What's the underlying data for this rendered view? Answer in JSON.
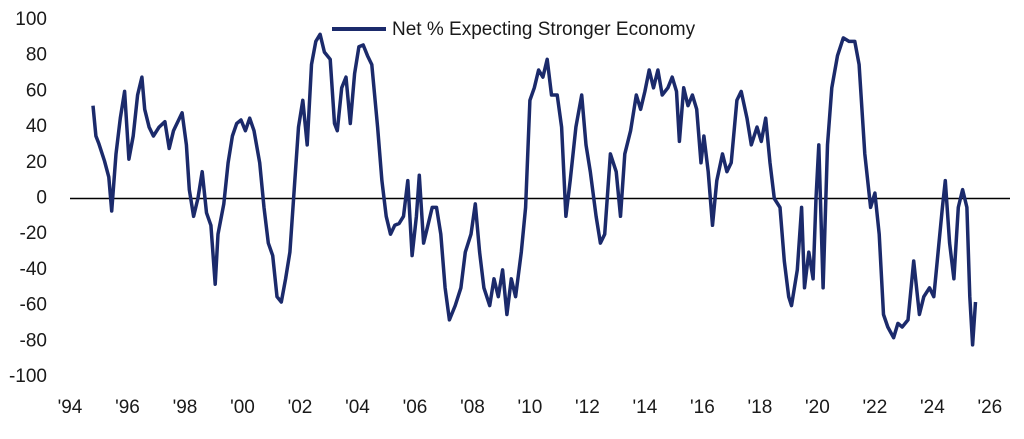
{
  "chart_data": {
    "type": "line",
    "legend": "top center",
    "zero_line": true,
    "xlim": [
      1994,
      2026.7
    ],
    "ylim": [
      -100,
      100
    ],
    "yticks": [
      -100,
      -80,
      -60,
      -40,
      -20,
      0,
      20,
      40,
      60,
      80,
      100
    ],
    "xticks": [
      {
        "value": 1994,
        "label": "'94"
      },
      {
        "value": 1996,
        "label": "'96"
      },
      {
        "value": 1998,
        "label": "'98"
      },
      {
        "value": 2000,
        "label": "'00"
      },
      {
        "value": 2002,
        "label": "'02"
      },
      {
        "value": 2004,
        "label": "'04"
      },
      {
        "value": 2006,
        "label": "'06"
      },
      {
        "value": 2008,
        "label": "'08"
      },
      {
        "value": 2010,
        "label": "'10"
      },
      {
        "value": 2012,
        "label": "'12"
      },
      {
        "value": 2014,
        "label": "'14"
      },
      {
        "value": 2016,
        "label": "'16"
      },
      {
        "value": 2018,
        "label": "'18"
      },
      {
        "value": 2020,
        "label": "'20"
      },
      {
        "value": 2022,
        "label": "'22"
      },
      {
        "value": 2024,
        "label": "'24"
      },
      {
        "value": 2026,
        "label": "'26"
      }
    ],
    "x": [
      1994.8,
      1994.9,
      1995.0,
      1995.2,
      1995.35,
      1995.45,
      1995.6,
      1995.75,
      1995.9,
      1996.05,
      1996.2,
      1996.35,
      1996.5,
      1996.6,
      1996.75,
      1996.9,
      1997.1,
      1997.3,
      1997.45,
      1997.6,
      1997.75,
      1997.9,
      1998.05,
      1998.15,
      1998.3,
      1998.45,
      1998.6,
      1998.75,
      1998.9,
      1999.05,
      1999.15,
      1999.35,
      1999.5,
      1999.65,
      1999.8,
      1999.95,
      2000.1,
      2000.25,
      2000.4,
      2000.6,
      2000.75,
      2000.9,
      2001.05,
      2001.2,
      2001.35,
      2001.5,
      2001.65,
      2001.8,
      2001.95,
      2002.1,
      2002.25,
      2002.4,
      2002.55,
      2002.7,
      2002.85,
      2003.05,
      2003.2,
      2003.3,
      2003.45,
      2003.6,
      2003.75,
      2003.9,
      2004.05,
      2004.2,
      2004.35,
      2004.5,
      2004.7,
      2004.85,
      2005.0,
      2005.15,
      2005.3,
      2005.45,
      2005.6,
      2005.75,
      2005.9,
      2006.05,
      2006.15,
      2006.3,
      2006.45,
      2006.6,
      2006.75,
      2006.9,
      2007.05,
      2007.2,
      2007.4,
      2007.6,
      2007.75,
      2007.95,
      2008.1,
      2008.25,
      2008.4,
      2008.6,
      2008.75,
      2008.9,
      2009.05,
      2009.2,
      2009.35,
      2009.5,
      2009.7,
      2009.85,
      2010.0,
      2010.15,
      2010.3,
      2010.45,
      2010.6,
      2010.75,
      2010.95,
      2011.1,
      2011.25,
      2011.4,
      2011.6,
      2011.8,
      2011.95,
      2012.1,
      2012.3,
      2012.45,
      2012.6,
      2012.8,
      2013.0,
      2013.15,
      2013.3,
      2013.5,
      2013.7,
      2013.85,
      2014.0,
      2014.15,
      2014.3,
      2014.45,
      2014.6,
      2014.8,
      2014.95,
      2015.1,
      2015.2,
      2015.35,
      2015.5,
      2015.65,
      2015.8,
      2015.95,
      2016.05,
      2016.2,
      2016.35,
      2016.5,
      2016.7,
      2016.85,
      2017.0,
      2017.2,
      2017.35,
      2017.55,
      2017.7,
      2017.9,
      2018.05,
      2018.2,
      2018.35,
      2018.5,
      2018.7,
      2018.85,
      2019.0,
      2019.1,
      2019.3,
      2019.45,
      2019.55,
      2019.7,
      2019.85,
      2019.95,
      2020.05,
      2020.2,
      2020.35,
      2020.5,
      2020.7,
      2020.9,
      2021.1,
      2021.3,
      2021.45,
      2021.65,
      2021.85,
      2022.0,
      2022.15,
      2022.3,
      2022.45,
      2022.65,
      2022.8,
      2022.95,
      2023.15,
      2023.35,
      2023.55,
      2023.7,
      2023.9,
      2024.05,
      2024.2,
      2024.35,
      2024.45,
      2024.6,
      2024.75,
      2024.9,
      2025.05,
      2025.2,
      2025.3,
      2025.4,
      2025.5
    ],
    "series": [
      {
        "name": "Net % Expecting Stronger Economy",
        "color": "#1b2a6b",
        "values": [
          52,
          35,
          31,
          21,
          12,
          -7,
          25,
          45,
          60,
          22,
          35,
          58,
          68,
          50,
          40,
          35,
          40,
          43,
          28,
          38,
          43,
          48,
          30,
          5,
          -10,
          0,
          15,
          -8,
          -15,
          -48,
          -20,
          -3,
          20,
          35,
          42,
          44,
          38,
          45,
          38,
          20,
          -5,
          -25,
          -32,
          -55,
          -58,
          -45,
          -30,
          5,
          40,
          55,
          30,
          75,
          88,
          92,
          82,
          78,
          42,
          38,
          62,
          68,
          42,
          70,
          85,
          86,
          80,
          75,
          40,
          10,
          -10,
          -20,
          -15,
          -14,
          -10,
          10,
          -32,
          -10,
          13,
          -25,
          -15,
          -5,
          -5,
          -20,
          -50,
          -68,
          -60,
          -50,
          -30,
          -20,
          -3,
          -30,
          -50,
          -60,
          -45,
          -55,
          -40,
          -65,
          -45,
          -55,
          -30,
          -5,
          55,
          62,
          72,
          68,
          78,
          58,
          58,
          40,
          -10,
          10,
          40,
          58,
          30,
          15,
          -10,
          -25,
          -20,
          25,
          15,
          -10,
          25,
          38,
          58,
          50,
          60,
          72,
          62,
          72,
          58,
          62,
          68,
          60,
          32,
          62,
          52,
          58,
          50,
          20,
          35,
          15,
          -15,
          10,
          25,
          15,
          20,
          55,
          60,
          45,
          30,
          40,
          32,
          45,
          20,
          0,
          -5,
          -35,
          -55,
          -60,
          -40,
          -5,
          -50,
          -30,
          -45,
          0,
          30,
          -50,
          30,
          62,
          80,
          90,
          88,
          88,
          75,
          25,
          -5,
          3,
          -20,
          -65,
          -72,
          -78,
          -70,
          -72,
          -68,
          -35,
          -65,
          -55,
          -50,
          -55,
          -30,
          -5,
          10,
          -25,
          -45,
          -5,
          5,
          -5,
          -55,
          -82,
          -58
        ]
      }
    ]
  }
}
